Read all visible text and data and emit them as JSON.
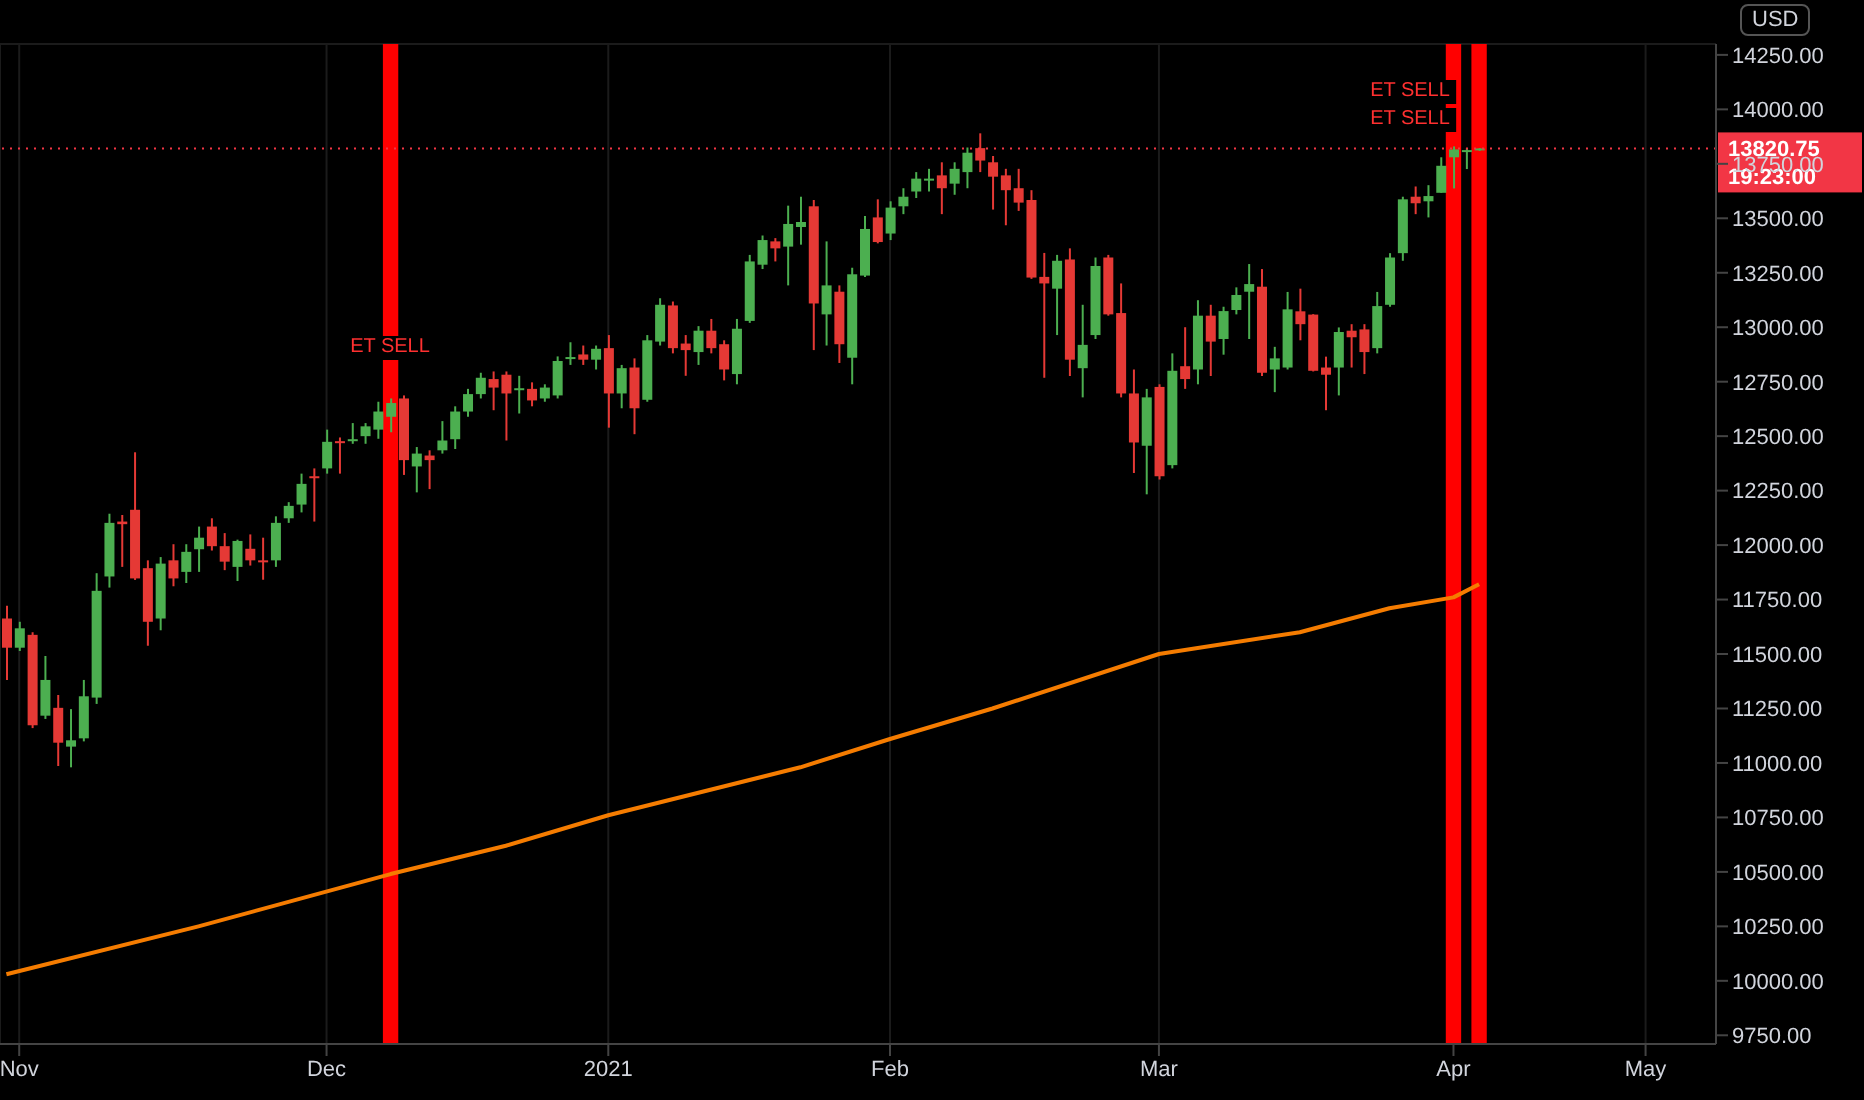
{
  "chart_data": {
    "type": "candlestick",
    "categories": [
      null,
      "Nov",
      null,
      null,
      null,
      null,
      null,
      null,
      null,
      null,
      null,
      null,
      null,
      null,
      null,
      null,
      null,
      null,
      null,
      null,
      null,
      null,
      null,
      null,
      null,
      "Dec",
      null,
      null,
      null,
      null,
      null,
      null,
      null,
      null,
      null,
      null,
      null,
      null,
      null,
      null,
      null,
      null,
      null,
      null,
      null,
      null,
      null,
      "2021",
      null,
      null,
      null,
      null,
      null,
      null,
      null,
      null,
      null,
      null,
      null,
      null,
      null,
      null,
      null,
      null,
      null,
      null,
      null,
      null,
      null,
      "Feb",
      null,
      null,
      null,
      null,
      null,
      null,
      null,
      null,
      null,
      null,
      null,
      null,
      null,
      null,
      null,
      null,
      null,
      null,
      null,
      null,
      "Mar",
      null,
      null,
      null,
      null,
      null,
      null,
      null,
      null,
      null,
      null,
      null,
      null,
      null,
      null,
      null,
      null,
      null,
      null,
      null,
      null,
      null,
      null,
      "Apr",
      null,
      null,
      null,
      null,
      null,
      null,
      null,
      null,
      null,
      null,
      null,
      null,
      null,
      null,
      "May",
      null,
      null,
      null,
      null,
      null
    ],
    "ohlc": [
      [
        11663,
        11722,
        11381,
        11529
      ],
      [
        11529,
        11648,
        11514,
        11618
      ],
      [
        11588,
        11600,
        11160,
        11173
      ],
      [
        11217,
        11491,
        11202,
        11381
      ],
      [
        11253,
        11312,
        10986,
        11093
      ],
      [
        11075,
        11247,
        10980,
        11104
      ],
      [
        11113,
        11381,
        11099,
        11306
      ],
      [
        11300,
        11871,
        11271,
        11790
      ],
      [
        11856,
        12144,
        11805,
        12102
      ],
      [
        12108,
        12138,
        11900,
        12096
      ],
      [
        12162,
        12426,
        11840,
        11847
      ],
      [
        11894,
        11930,
        11538,
        11648
      ],
      [
        11663,
        11945,
        11609,
        11915
      ],
      [
        11930,
        12004,
        11811,
        11847
      ],
      [
        11877,
        12004,
        11826,
        11969
      ],
      [
        11981,
        12085,
        11877,
        12034
      ],
      [
        12085,
        12123,
        11975,
        11995
      ],
      [
        11995,
        12055,
        11885,
        11924
      ],
      [
        11900,
        12025,
        11835,
        12019
      ],
      [
        11983,
        12049,
        11906,
        11930
      ],
      [
        11930,
        12034,
        11841,
        11927
      ],
      [
        11930,
        12132,
        11900,
        12102
      ],
      [
        12123,
        12197,
        12102,
        12180
      ],
      [
        12186,
        12328,
        12150,
        12281
      ],
      [
        12316,
        12352,
        12108,
        12307
      ],
      [
        12352,
        12530,
        12328,
        12474
      ],
      [
        12477,
        12494,
        12328,
        12474
      ],
      [
        12483,
        12560,
        12465,
        12486
      ],
      [
        12500,
        12560,
        12465,
        12545
      ],
      [
        12530,
        12658,
        12488,
        12613
      ],
      [
        12589,
        12673,
        12518,
        12652
      ],
      [
        12673,
        12687,
        12322,
        12390
      ],
      [
        12361,
        12450,
        12242,
        12420
      ],
      [
        12411,
        12435,
        12257,
        12390
      ],
      [
        12435,
        12569,
        12420,
        12480
      ],
      [
        12486,
        12637,
        12441,
        12613
      ],
      [
        12613,
        12717,
        12589,
        12693
      ],
      [
        12693,
        12791,
        12673,
        12768
      ],
      [
        12762,
        12797,
        12619,
        12723
      ],
      [
        12782,
        12797,
        12480,
        12696
      ],
      [
        12714,
        12777,
        12604,
        12720
      ],
      [
        12717,
        12747,
        12637,
        12664
      ],
      [
        12673,
        12738,
        12658,
        12723
      ],
      [
        12687,
        12866,
        12673,
        12845
      ],
      [
        12860,
        12931,
        12827,
        12863
      ],
      [
        12875,
        12916,
        12827,
        12851
      ],
      [
        12851,
        12916,
        12806,
        12901
      ],
      [
        12904,
        12964,
        12539,
        12696
      ],
      [
        12696,
        12827,
        12628,
        12812
      ],
      [
        12815,
        12857,
        12509,
        12628
      ],
      [
        12667,
        12964,
        12658,
        12940
      ],
      [
        12934,
        13133,
        12916,
        13103
      ],
      [
        13100,
        13118,
        12880,
        12904
      ],
      [
        12925,
        12964,
        12777,
        12895
      ],
      [
        12886,
        13005,
        12827,
        12984
      ],
      [
        12984,
        13038,
        12880,
        12904
      ],
      [
        12922,
        12940,
        12756,
        12806
      ],
      [
        12785,
        13038,
        12738,
        12993
      ],
      [
        13029,
        13332,
        13020,
        13302
      ],
      [
        13287,
        13421,
        13267,
        13400
      ],
      [
        13394,
        13409,
        13302,
        13362
      ],
      [
        13370,
        13558,
        13192,
        13474
      ],
      [
        13460,
        13599,
        13379,
        13483
      ],
      [
        13555,
        13584,
        12895,
        13109
      ],
      [
        13059,
        13394,
        12916,
        13192
      ],
      [
        13163,
        13192,
        12836,
        12922
      ],
      [
        12860,
        13273,
        12738,
        13243
      ],
      [
        13237,
        13510,
        13231,
        13451
      ],
      [
        13504,
        13587,
        13385,
        13391
      ],
      [
        13430,
        13578,
        13400,
        13549
      ],
      [
        13555,
        13638,
        13519,
        13599
      ],
      [
        13623,
        13712,
        13593,
        13682
      ],
      [
        13676,
        13727,
        13623,
        13682
      ],
      [
        13697,
        13757,
        13519,
        13638
      ],
      [
        13659,
        13757,
        13608,
        13727
      ],
      [
        13712,
        13825,
        13638,
        13801
      ],
      [
        13822,
        13890,
        13712,
        13765
      ],
      [
        13757,
        13786,
        13540,
        13691
      ],
      [
        13697,
        13727,
        13468,
        13629
      ],
      [
        13638,
        13727,
        13534,
        13572
      ],
      [
        13584,
        13629,
        13222,
        13228
      ],
      [
        13231,
        13341,
        12768,
        13201
      ],
      [
        13177,
        13332,
        12964,
        13305
      ],
      [
        13311,
        13362,
        12776,
        12851
      ],
      [
        12812,
        13103,
        12678,
        12919
      ],
      [
        12964,
        13320,
        12946,
        13281
      ],
      [
        13320,
        13332,
        13053,
        13059
      ],
      [
        13065,
        13201,
        12678,
        12696
      ],
      [
        12696,
        12806,
        12331,
        12471
      ],
      [
        12456,
        12717,
        12233,
        12678
      ],
      [
        12726,
        12738,
        12301,
        12316
      ],
      [
        12367,
        12880,
        12352,
        12800
      ],
      [
        12821,
        13000,
        12717,
        12762
      ],
      [
        12806,
        13124,
        12738,
        13053
      ],
      [
        13053,
        13103,
        12776,
        12934
      ],
      [
        12946,
        13094,
        12874,
        13074
      ],
      [
        13079,
        13183,
        13059,
        13148
      ],
      [
        13163,
        13290,
        12946,
        13198
      ],
      [
        13186,
        13267,
        12776,
        12791
      ],
      [
        12806,
        12910,
        12702,
        12857
      ],
      [
        12815,
        13162,
        12806,
        13082
      ],
      [
        13073,
        13177,
        12940,
        13014
      ],
      [
        13058,
        13060,
        12797,
        12800
      ],
      [
        12815,
        12865,
        12619,
        12782
      ],
      [
        12815,
        12999,
        12687,
        12978
      ],
      [
        12984,
        13014,
        12815,
        12954
      ],
      [
        12990,
        13014,
        12785,
        12886
      ],
      [
        12904,
        13162,
        12880,
        13097
      ],
      [
        13103,
        13340,
        13094,
        13320
      ],
      [
        13340,
        13599,
        13305,
        13587
      ],
      [
        13599,
        13646,
        13519,
        13569
      ],
      [
        13578,
        13652,
        13504,
        13602
      ],
      [
        13617,
        13780,
        13617,
        13741
      ],
      [
        13780,
        13830,
        13637,
        13816
      ],
      [
        13810,
        13822,
        13726,
        13813
      ],
      [
        13818,
        13822,
        13810,
        13820.75
      ],
      null,
      null,
      null,
      null,
      null,
      null,
      null,
      null,
      null,
      null,
      null,
      null,
      null,
      null,
      null,
      null,
      null,
      null
    ],
    "colors": [
      "#e53935",
      "#4caf50",
      "#e53935",
      "#4caf50",
      "#e53935",
      "#4caf50",
      "#4caf50",
      "#4caf50",
      "#4caf50",
      "#e53935",
      "#e53935",
      "#e53935",
      "#4caf50",
      "#e53935",
      "#4caf50",
      "#4caf50",
      "#e53935",
      "#e53935",
      "#4caf50",
      "#e53935",
      "#e53935",
      "#4caf50",
      "#4caf50",
      "#4caf50",
      "#e53935",
      "#4caf50",
      "#e53935",
      "#4caf50",
      "#4caf50",
      "#4caf50",
      "#4caf50",
      "#e53935",
      "#4caf50",
      "#e53935",
      "#4caf50",
      "#4caf50",
      "#4caf50",
      "#4caf50",
      "#e53935",
      "#e53935",
      "#4caf50",
      "#e53935",
      "#4caf50",
      "#4caf50",
      "#4caf50",
      "#e53935",
      "#4caf50",
      "#e53935",
      "#4caf50",
      "#e53935",
      "#4caf50",
      "#4caf50",
      "#e53935",
      "#e53935",
      "#4caf50",
      "#e53935",
      "#e53935",
      "#4caf50",
      "#4caf50",
      "#4caf50",
      "#e53935",
      "#4caf50",
      "#4caf50",
      "#e53935",
      "#4caf50",
      "#e53935",
      "#4caf50",
      "#4caf50",
      "#e53935",
      "#4caf50",
      "#4caf50",
      "#4caf50",
      "#4caf50",
      "#e53935",
      "#4caf50",
      "#4caf50",
      "#e53935",
      "#e53935",
      "#e53935",
      "#e53935",
      "#e53935",
      "#e53935",
      "#4caf50",
      "#e53935",
      "#4caf50",
      "#4caf50",
      "#e53935",
      "#e53935",
      "#e53935",
      "#4caf50",
      "#e53935",
      "#4caf50",
      "#e53935",
      "#4caf50",
      "#e53935",
      "#4caf50",
      "#4caf50",
      "#4caf50",
      "#e53935",
      "#4caf50",
      "#4caf50",
      "#e53935",
      "#e53935",
      "#e53935",
      "#4caf50",
      "#e53935",
      "#e53935",
      "#4caf50",
      "#4caf50",
      "#4caf50",
      "#e53935",
      "#4caf50",
      "#4caf50",
      "#4caf50",
      "#4caf50",
      "#4caf50",
      null,
      null,
      null,
      null,
      null,
      null,
      null,
      null,
      null,
      null,
      null,
      null,
      null,
      null,
      null,
      null,
      null,
      null
    ],
    "series": [
      {
        "type": "line",
        "color": "#f57c00",
        "values": [
          10030,
          null,
          null,
          null,
          null,
          null,
          null,
          null,
          null,
          null,
          null,
          null,
          null,
          null,
          null,
          10250,
          null,
          null,
          null,
          null,
          null,
          null,
          null,
          null,
          null,
          null,
          null,
          null,
          null,
          null,
          10490,
          null,
          null,
          null,
          null,
          null,
          null,
          null,
          null,
          10620,
          null,
          null,
          null,
          null,
          null,
          null,
          null,
          10760,
          null,
          null,
          null,
          null,
          null,
          null,
          null,
          null,
          null,
          null,
          null,
          null,
          null,
          null,
          10980,
          null,
          null,
          null,
          null,
          null,
          null,
          11110,
          null,
          null,
          null,
          null,
          null,
          null,
          null,
          11250,
          null,
          null,
          null,
          null,
          null,
          null,
          null,
          null,
          null,
          null,
          null,
          null,
          11500,
          null,
          null,
          null,
          null,
          null,
          null,
          null,
          null,
          null,
          null,
          11600,
          null,
          null,
          null,
          null,
          null,
          null,
          11710,
          null,
          null,
          null,
          null,
          11760,
          null,
          11820,
          null,
          null,
          null,
          null,
          null,
          null,
          null,
          null,
          null,
          null,
          null,
          null,
          null,
          null,
          null,
          null,
          null,
          null
        ]
      }
    ],
    "ylabel": "USD",
    "ylim": [
      9710,
      14300
    ],
    "yticks": [
      {
        "value": 9750,
        "label": "9750.00"
      },
      {
        "value": 10000,
        "label": "10000.00"
      },
      {
        "value": 10250,
        "label": "10250.00"
      },
      {
        "value": 10500,
        "label": "10500.00"
      },
      {
        "value": 10750,
        "label": "10750.00"
      },
      {
        "value": 11000,
        "label": "11000.00"
      },
      {
        "value": 11250,
        "label": "11250.00"
      },
      {
        "value": 11500,
        "label": "11500.00"
      },
      {
        "value": 11750,
        "label": "11750.00"
      },
      {
        "value": 12000,
        "label": "12000.00"
      },
      {
        "value": 12250,
        "label": "12250.00"
      },
      {
        "value": 12500,
        "label": "12500.00"
      },
      {
        "value": 12750,
        "label": "12750.00"
      },
      {
        "value": 13000,
        "label": "13000.00"
      },
      {
        "value": 13250,
        "label": "13250.00"
      },
      {
        "value": 13500,
        "label": "13500.00"
      },
      {
        "value": 13750,
        "label": "13750.00"
      },
      {
        "value": 14000,
        "label": "14000.00"
      },
      {
        "value": 14250,
        "label": "14250.00"
      }
    ],
    "ref_lines": [
      {
        "axis": "y",
        "value": 13820.75,
        "label": "13820.75",
        "color": "#f23645",
        "line_style": "dotted"
      }
    ],
    "annotations": [
      "19:23:00",
      "ET SELL",
      "ET SELL",
      "ET SELL"
    ],
    "grid": true
  }
}
